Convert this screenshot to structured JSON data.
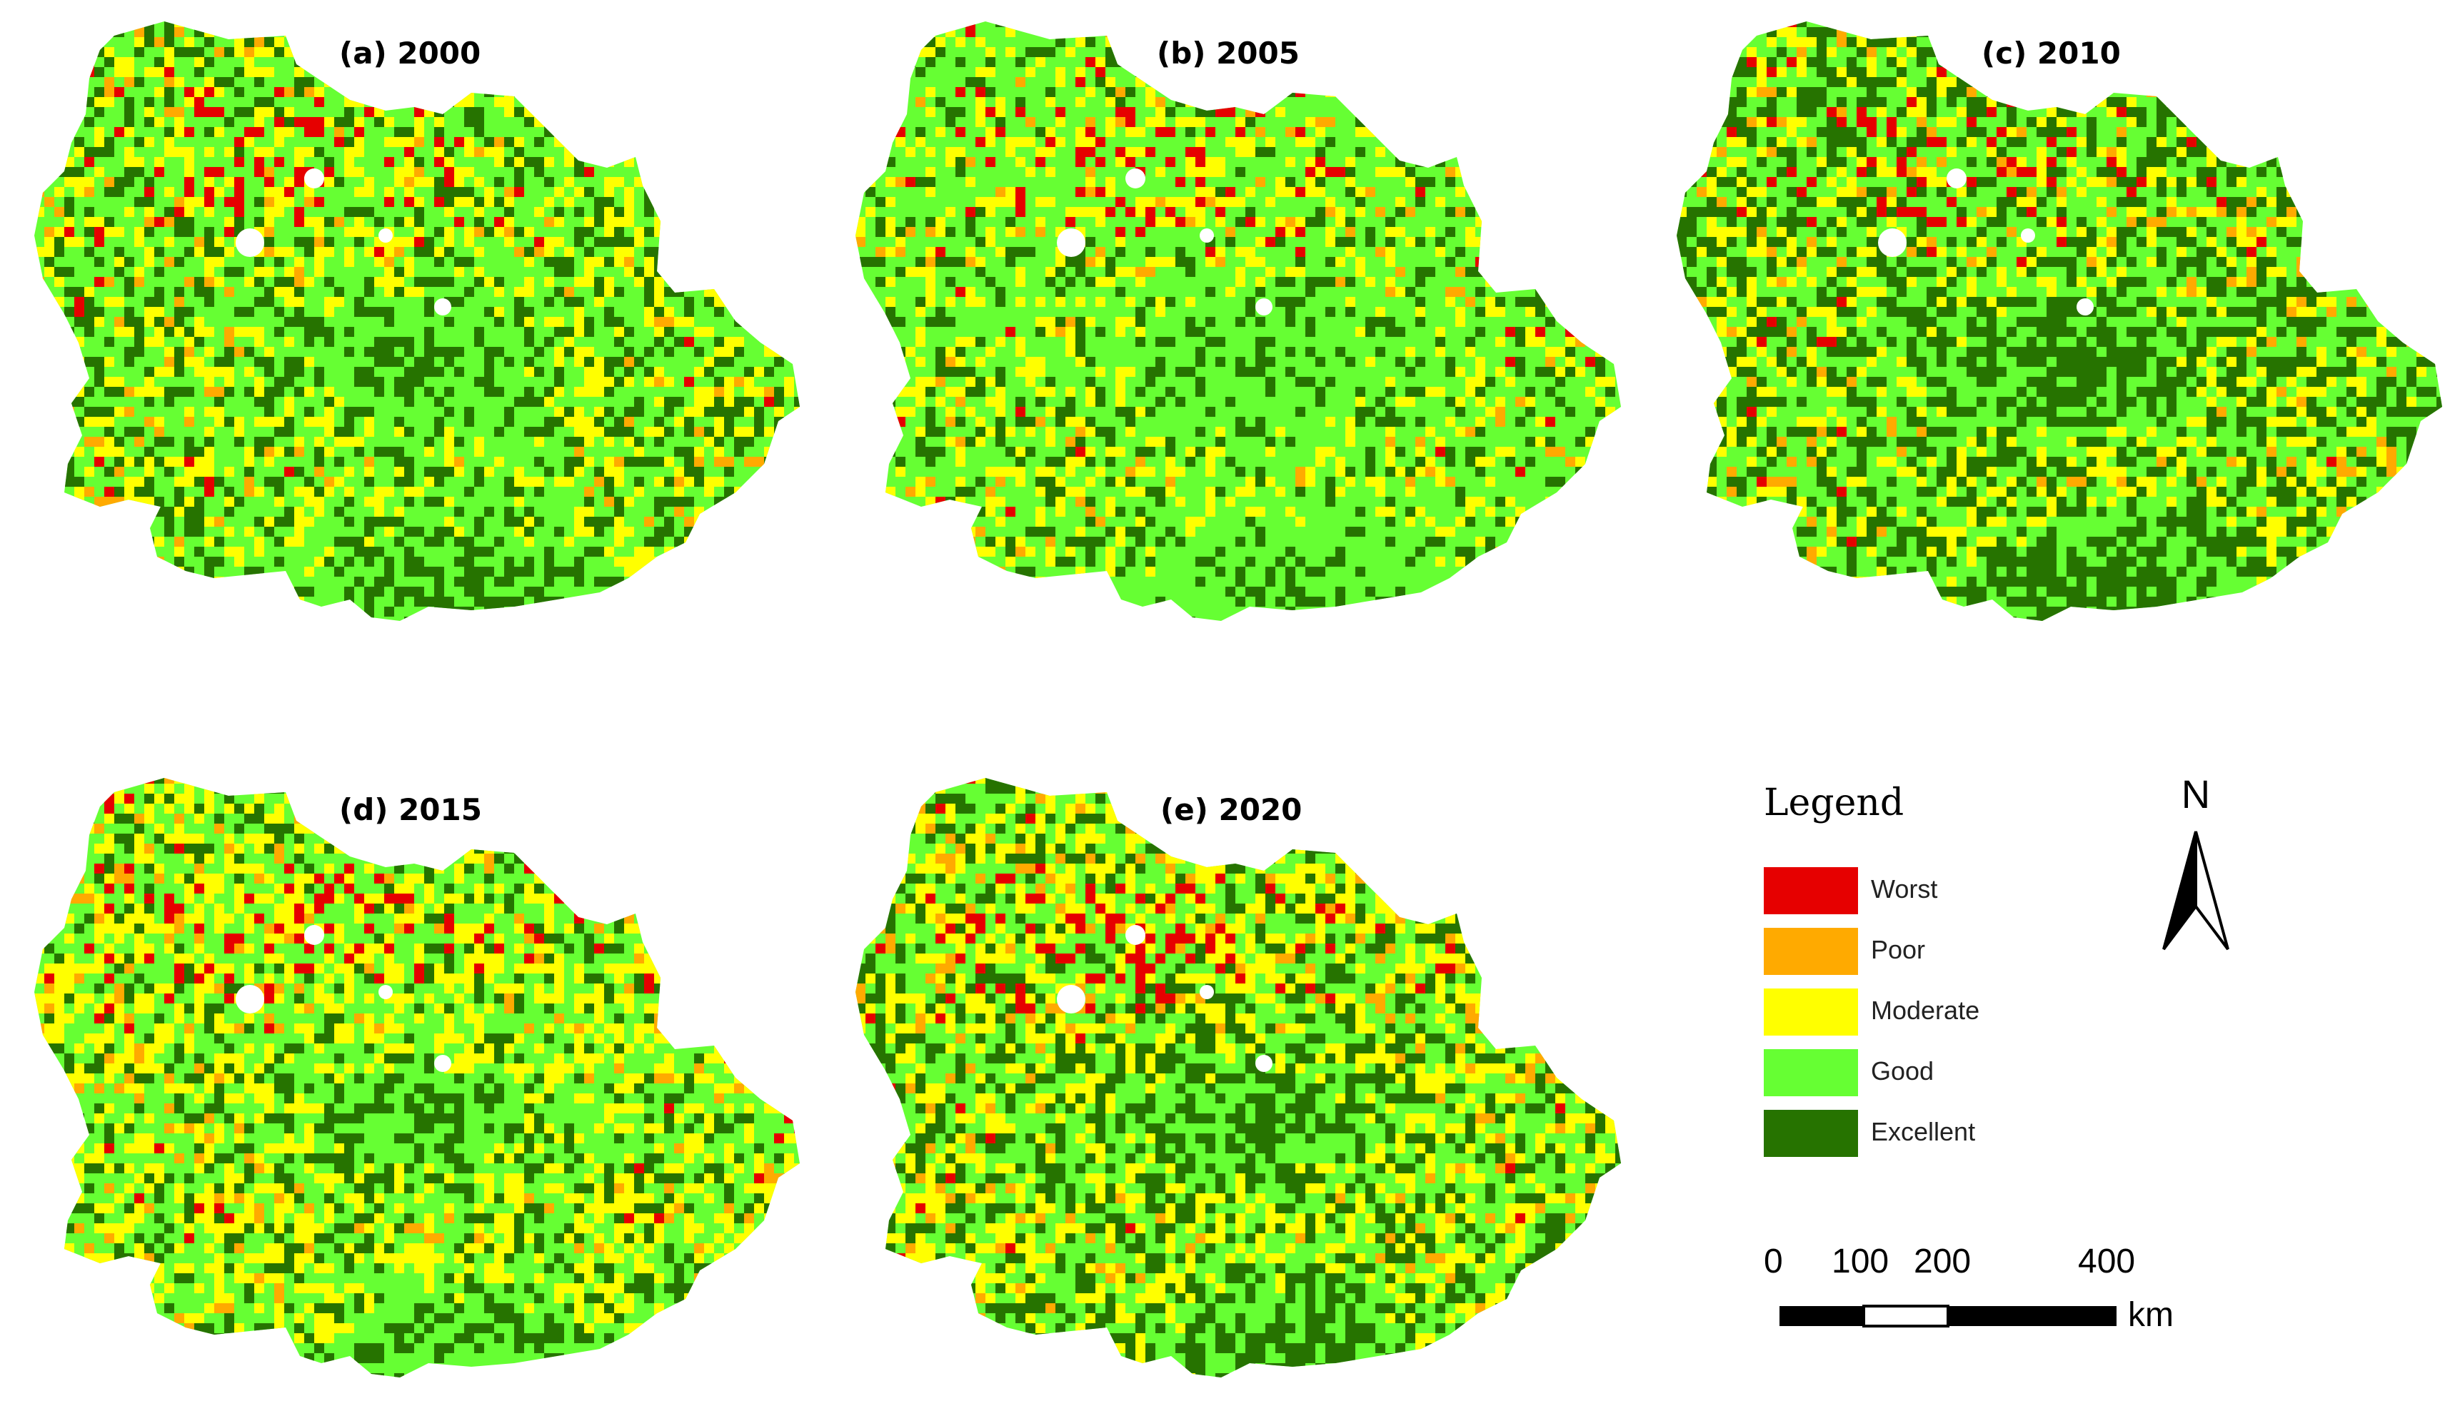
{
  "colors": {
    "worst": "#e60000",
    "poor": "#ffaa00",
    "moderate": "#ffff00",
    "good": "#66ff33",
    "excellent": "#267300",
    "nodata": "#ffffff"
  },
  "panels": [
    {
      "title": "(a) 2000",
      "mix": {
        "excellent": 0.24,
        "good": 0.46,
        "moderate": 0.22,
        "poor": 0.06,
        "worst": 0.02
      }
    },
    {
      "title": "(b) 2005",
      "mix": {
        "excellent": 0.16,
        "good": 0.58,
        "moderate": 0.2,
        "poor": 0.04,
        "worst": 0.02
      }
    },
    {
      "title": "(c) 2010",
      "mix": {
        "excellent": 0.34,
        "good": 0.4,
        "moderate": 0.19,
        "poor": 0.05,
        "worst": 0.02
      }
    },
    {
      "title": "(d) 2015",
      "mix": {
        "excellent": 0.2,
        "good": 0.42,
        "moderate": 0.3,
        "poor": 0.06,
        "worst": 0.02
      }
    },
    {
      "title": "(e) 2020",
      "mix": {
        "excellent": 0.28,
        "good": 0.36,
        "moderate": 0.27,
        "poor": 0.07,
        "worst": 0.02
      }
    }
  ],
  "legend": {
    "title": "Legend",
    "items": [
      {
        "label": "Worst",
        "color_key": "worst"
      },
      {
        "label": "Poor",
        "color_key": "poor"
      },
      {
        "label": "Moderate",
        "color_key": "moderate"
      },
      {
        "label": "Good",
        "color_key": "good"
      },
      {
        "label": "Excellent",
        "color_key": "excellent"
      }
    ]
  },
  "north_arrow": {
    "label": "N",
    "icon": "north-arrow-icon"
  },
  "scale_bar": {
    "ticks": [
      "0",
      "100",
      "200",
      "400"
    ],
    "unit": "km"
  }
}
